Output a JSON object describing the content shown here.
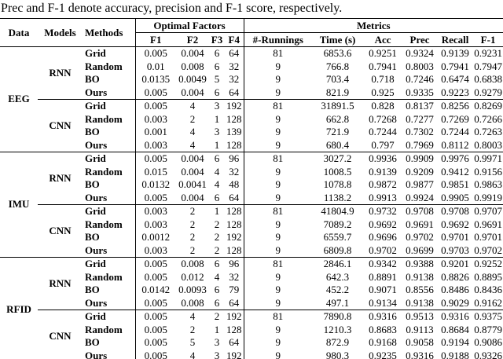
{
  "caption": "Prec and F-1 denote accuracy, precision and F-1 score, respectively.",
  "table": {
    "header": {
      "data": "Data",
      "models": "Models",
      "methods": "Methods",
      "optimal_factors": "Optimal Factors",
      "metrics": "Metrics",
      "factor_cols": [
        "F1",
        "F2",
        "F3",
        "F4"
      ],
      "metric_cols": [
        "#-Runnings",
        "Time (s)",
        "Acc",
        "Prec",
        "Recall",
        "F-1"
      ]
    },
    "groups": [
      {
        "data": "EEG",
        "models": [
          {
            "name": "RNN",
            "rows": [
              {
                "method": "Grid",
                "f1": "0.005",
                "f2": "0.004",
                "f3": "6",
                "f4": "64",
                "runs": "81",
                "time": "6853.6",
                "acc": "0.9251",
                "prec": "0.9324",
                "recall": "0.9139",
                "fscore": "0.9231"
              },
              {
                "method": "Random",
                "f1": "0.01",
                "f2": "0.008",
                "f3": "6",
                "f4": "32",
                "runs": "9",
                "time": "766.8",
                "acc": "0.7941",
                "prec": "0.8003",
                "recall": "0.7941",
                "fscore": "0.7947"
              },
              {
                "method": "BO",
                "f1": "0.0135",
                "f2": "0.0049",
                "f3": "5",
                "f4": "32",
                "runs": "9",
                "time": "703.4",
                "acc": "0.718",
                "prec": "0.7246",
                "recall": "0.6474",
                "fscore": "0.6838"
              },
              {
                "method": "Ours",
                "f1": "0.005",
                "f2": "0.004",
                "f3": "6",
                "f4": "64",
                "runs": "9",
                "time": "821.9",
                "acc": "0.925",
                "prec": "0.9335",
                "recall": "0.9223",
                "fscore": "0.9279"
              }
            ]
          },
          {
            "name": "CNN",
            "rows": [
              {
                "method": "Grid",
                "f1": "0.005",
                "f2": "4",
                "f3": "3",
                "f4": "192",
                "runs": "81",
                "time": "31891.5",
                "acc": "0.828",
                "prec": "0.8137",
                "recall": "0.8256",
                "fscore": "0.8269"
              },
              {
                "method": "Random",
                "f1": "0.003",
                "f2": "2",
                "f3": "1",
                "f4": "128",
                "runs": "9",
                "time": "662.8",
                "acc": "0.7268",
                "prec": "0.7277",
                "recall": "0.7269",
                "fscore": "0.7266"
              },
              {
                "method": "BO",
                "f1": "0.001",
                "f2": "4",
                "f3": "3",
                "f4": "139",
                "runs": "9",
                "time": "721.9",
                "acc": "0.7244",
                "prec": "0.7302",
                "recall": "0.7244",
                "fscore": "0.7263"
              },
              {
                "method": "Ours",
                "f1": "0.003",
                "f2": "4",
                "f3": "1",
                "f4": "128",
                "runs": "9",
                "time": "680.4",
                "acc": "0.797",
                "prec": "0.7969",
                "recall": "0.8112",
                "fscore": "0.8003"
              }
            ]
          }
        ]
      },
      {
        "data": "IMU",
        "models": [
          {
            "name": "RNN",
            "rows": [
              {
                "method": "Grid",
                "f1": "0.005",
                "f2": "0.004",
                "f3": "6",
                "f4": "96",
                "runs": "81",
                "time": "3027.2",
                "acc": "0.9936",
                "prec": "0.9909",
                "recall": "0.9976",
                "fscore": "0.9971"
              },
              {
                "method": "Random",
                "f1": "0.015",
                "f2": "0.004",
                "f3": "4",
                "f4": "32",
                "runs": "9",
                "time": "1008.5",
                "acc": "0.9139",
                "prec": "0.9209",
                "recall": "0.9412",
                "fscore": "0.9156"
              },
              {
                "method": "BO",
                "f1": "0.0132",
                "f2": "0.0041",
                "f3": "4",
                "f4": "48",
                "runs": "9",
                "time": "1078.8",
                "acc": "0.9872",
                "prec": "0.9877",
                "recall": "0.9851",
                "fscore": "0.9863"
              },
              {
                "method": "Ours",
                "f1": "0.005",
                "f2": "0.004",
                "f3": "6",
                "f4": "64",
                "runs": "9",
                "time": "1138.2",
                "acc": "0.9913",
                "prec": "0.9924",
                "recall": "0.9905",
                "fscore": "0.9919"
              }
            ]
          },
          {
            "name": "CNN",
            "rows": [
              {
                "method": "Grid",
                "f1": "0.003",
                "f2": "2",
                "f3": "1",
                "f4": "128",
                "runs": "81",
                "time": "41804.9",
                "acc": "0.9732",
                "prec": "0.9708",
                "recall": "0.9708",
                "fscore": "0.9707"
              },
              {
                "method": "Random",
                "f1": "0.003",
                "f2": "2",
                "f3": "2",
                "f4": "128",
                "runs": "9",
                "time": "7089.2",
                "acc": "0.9692",
                "prec": "0.9691",
                "recall": "0.9692",
                "fscore": "0.9691"
              },
              {
                "method": "BO",
                "f1": "0.0012",
                "f2": "2",
                "f3": "2",
                "f4": "192",
                "runs": "9",
                "time": "6559.7",
                "acc": "0.9696",
                "prec": "0.9702",
                "recall": "0.9701",
                "fscore": "0.9701"
              },
              {
                "method": "Ours",
                "f1": "0.003",
                "f2": "2",
                "f3": "2",
                "f4": "128",
                "runs": "9",
                "time": "6809.8",
                "acc": "0.9702",
                "prec": "0.9699",
                "recall": "0.9703",
                "fscore": "0.9702"
              }
            ]
          }
        ]
      },
      {
        "data": "RFID",
        "models": [
          {
            "name": "RNN",
            "rows": [
              {
                "method": "Grid",
                "f1": "0.005",
                "f2": "0.008",
                "f3": "6",
                "f4": "96",
                "runs": "81",
                "time": "2846.1",
                "acc": "0.9342",
                "prec": "0.9388",
                "recall": "0.9201",
                "fscore": "0.9252"
              },
              {
                "method": "Random",
                "f1": "0.005",
                "f2": "0.012",
                "f3": "4",
                "f4": "32",
                "runs": "9",
                "time": "642.3",
                "acc": "0.8891",
                "prec": "0.9138",
                "recall": "0.8826",
                "fscore": "0.8895"
              },
              {
                "method": "BO",
                "f1": "0.0142",
                "f2": "0.0093",
                "f3": "6",
                "f4": "79",
                "runs": "9",
                "time": "452.2",
                "acc": "0.9071",
                "prec": "0.8556",
                "recall": "0.8486",
                "fscore": "0.8436"
              },
              {
                "method": "Ours",
                "f1": "0.005",
                "f2": "0.008",
                "f3": "6",
                "f4": "64",
                "runs": "9",
                "time": "497.1",
                "acc": "0.9134",
                "prec": "0.9138",
                "recall": "0.9029",
                "fscore": "0.9162"
              }
            ]
          },
          {
            "name": "CNN",
            "rows": [
              {
                "method": "Grid",
                "f1": "0.005",
                "f2": "4",
                "f3": "2",
                "f4": "192",
                "runs": "81",
                "time": "7890.8",
                "acc": "0.9316",
                "prec": "0.9513",
                "recall": "0.9316",
                "fscore": "0.9375"
              },
              {
                "method": "Random",
                "f1": "0.005",
                "f2": "2",
                "f3": "1",
                "f4": "128",
                "runs": "9",
                "time": "1210.3",
                "acc": "0.8683",
                "prec": "0.9113",
                "recall": "0.8684",
                "fscore": "0.8779"
              },
              {
                "method": "BO",
                "f1": "0.005",
                "f2": "5",
                "f3": "3",
                "f4": "64",
                "runs": "9",
                "time": "872.9",
                "acc": "0.9168",
                "prec": "0.9058",
                "recall": "0.9194",
                "fscore": "0.9086"
              },
              {
                "method": "Ours",
                "f1": "0.005",
                "f2": "4",
                "f3": "3",
                "f4": "192",
                "runs": "9",
                "time": "980.3",
                "acc": "0.9235",
                "prec": "0.9316",
                "recall": "0.9188",
                "fscore": "0.9326"
              }
            ]
          }
        ]
      }
    ]
  }
}
